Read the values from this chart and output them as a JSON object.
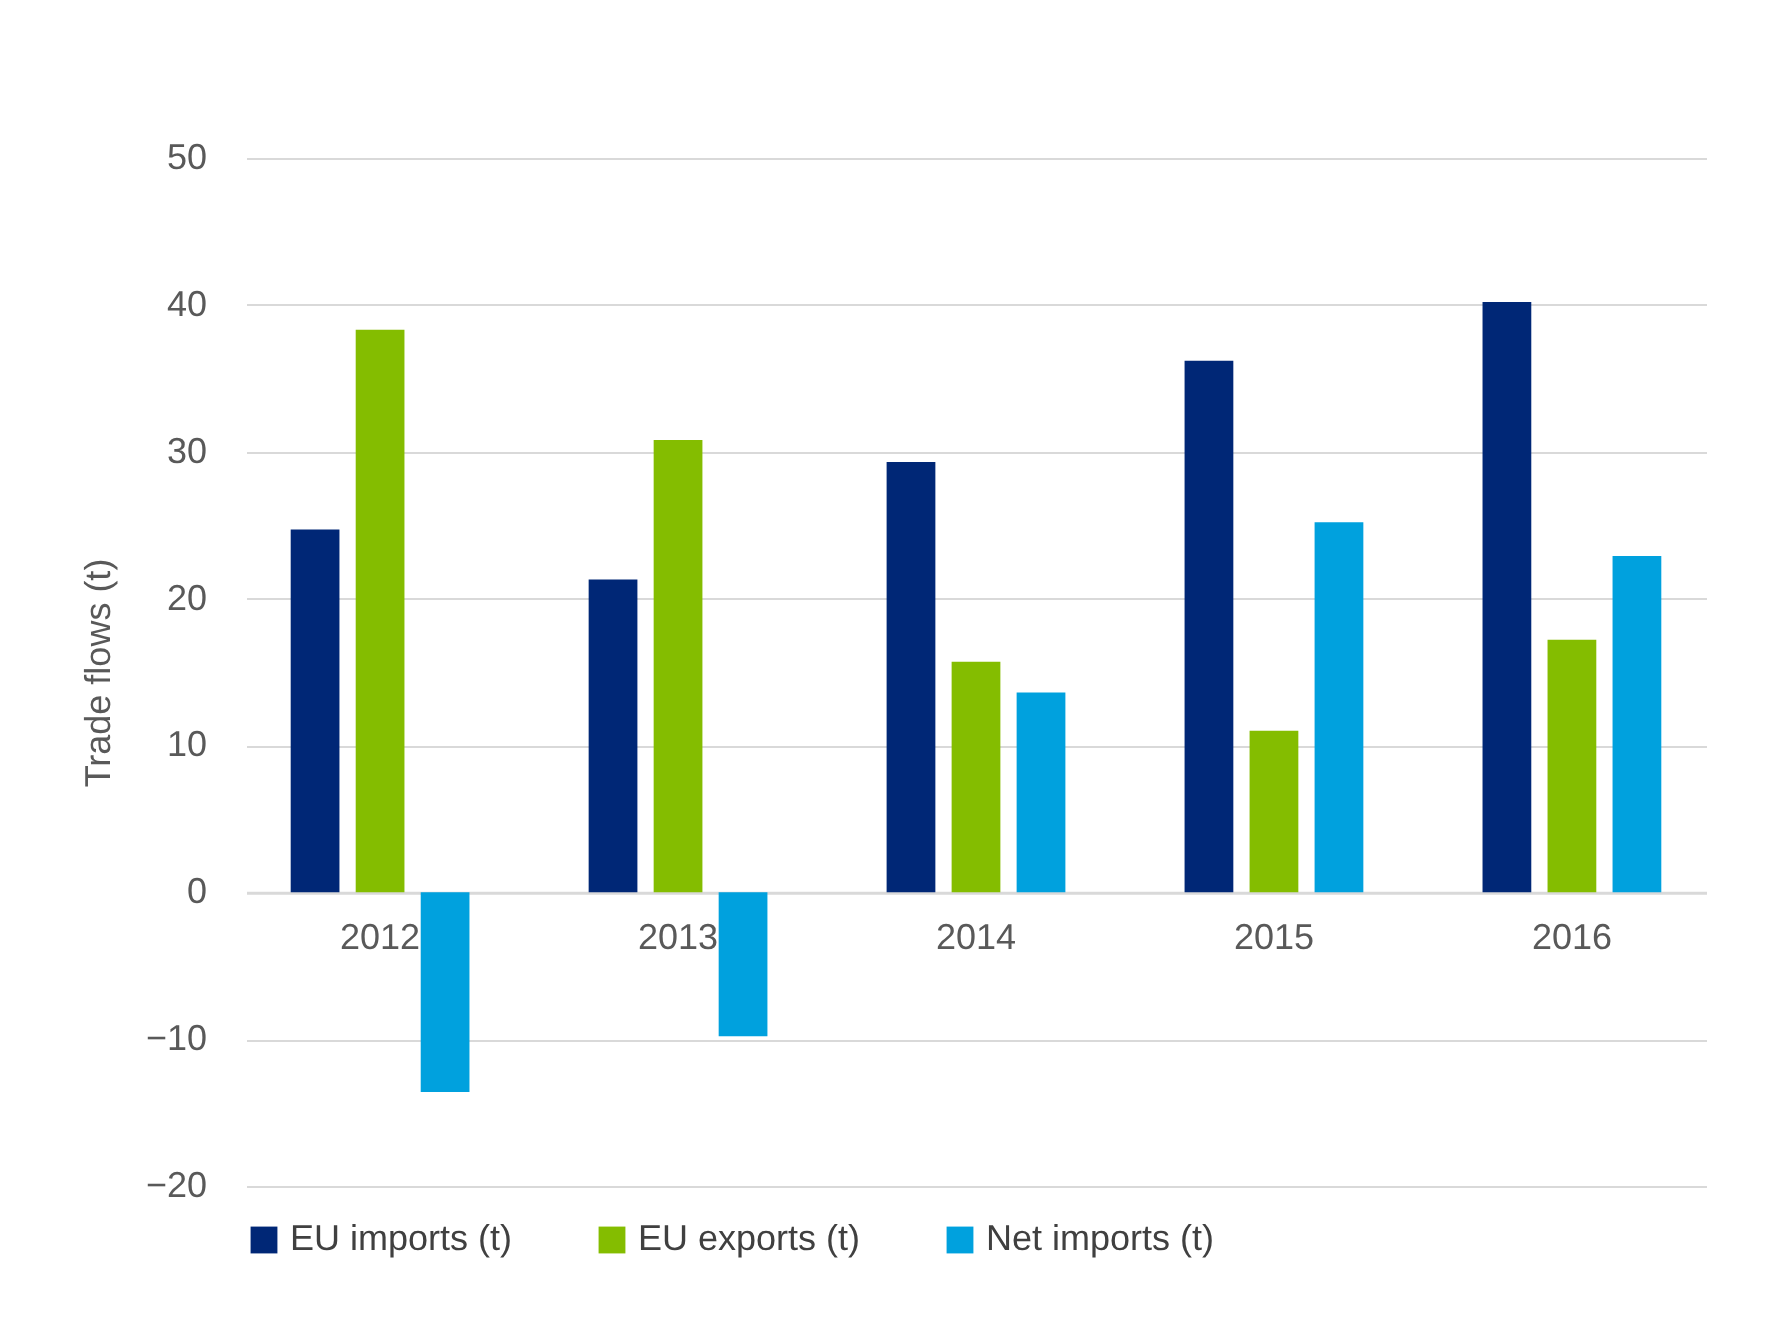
{
  "chart_data": {
    "type": "bar",
    "ylabel": "Trade flows (t)",
    "categories": [
      "2012",
      "2013",
      "2014",
      "2015",
      "2016"
    ],
    "series": [
      {
        "name": "EU imports (t)",
        "color": "#002776",
        "values": [
          24.7,
          21.3,
          29.3,
          36.2,
          40.2
        ]
      },
      {
        "name": "EU exports (t)",
        "color": "#84bd00",
        "values": [
          38.3,
          30.8,
          15.7,
          11.0,
          17.2
        ]
      },
      {
        "name": "Net imports (t)",
        "color": "#00a1de",
        "values": [
          -13.6,
          -9.8,
          13.6,
          25.2,
          22.9
        ]
      }
    ],
    "ylim": [
      -20,
      50
    ],
    "yticks": [
      -20,
      -10,
      0,
      10,
      20,
      30,
      40,
      50
    ],
    "grid": "y",
    "legend": "bottom"
  }
}
